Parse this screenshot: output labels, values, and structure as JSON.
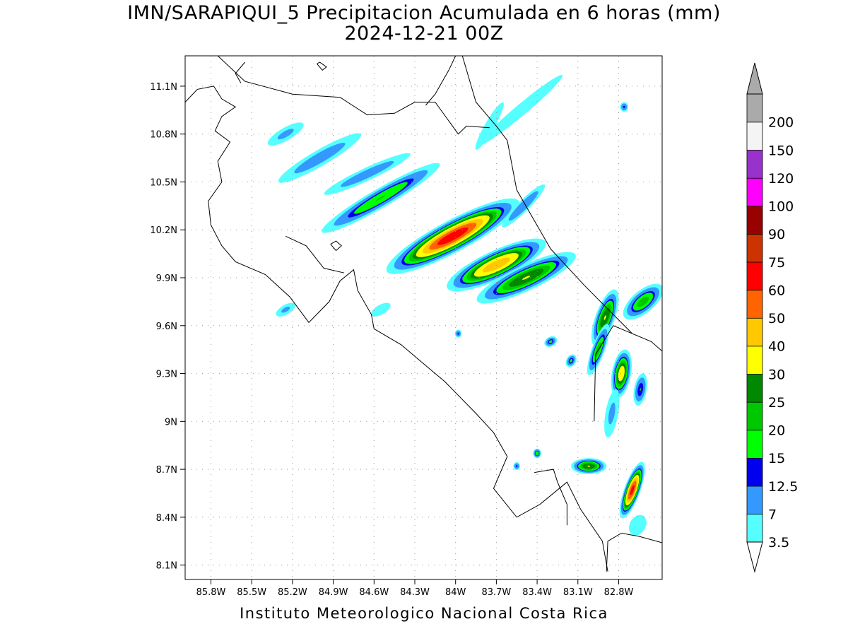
{
  "title": {
    "line1": "IMN/SARAPIQUI_5 Precipitacion Acumulada en 6 horas (mm)",
    "line2": "2024-12-21 00Z"
  },
  "footer": "Instituto Meteorologico Nacional Costa Rica",
  "axes": {
    "lon_ticks": [
      "85.8W",
      "85.5W",
      "85.2W",
      "84.9W",
      "84.6W",
      "84.3W",
      "84W",
      "83.7W",
      "83.4W",
      "83.1W",
      "82.8W"
    ],
    "lon_values": [
      -85.8,
      -85.5,
      -85.2,
      -84.9,
      -84.6,
      -84.3,
      -84.0,
      -83.7,
      -83.4,
      -83.1,
      -82.8
    ],
    "lat_ticks": [
      "11.1N",
      "10.8N",
      "10.5N",
      "10.2N",
      "9.9N",
      "9.6N",
      "9.3N",
      "9N",
      "8.7N",
      "8.4N",
      "8.1N"
    ],
    "lat_values": [
      11.1,
      10.8,
      10.5,
      10.2,
      9.9,
      9.6,
      9.3,
      9.0,
      8.7,
      8.4,
      8.1
    ],
    "lon_range": [
      -85.99,
      -82.48
    ],
    "lat_range": [
      8.01,
      11.29
    ],
    "grid": "dotted"
  },
  "colorbar": {
    "labels": [
      "3.5",
      "7",
      "12.5",
      "15",
      "20",
      "25",
      "30",
      "40",
      "50",
      "60",
      "75",
      "90",
      "100",
      "120",
      "150",
      "200"
    ],
    "colors": [
      "#55ffff",
      "#3399ff",
      "#0000ee",
      "#00ff00",
      "#00c800",
      "#008800",
      "#ffff00",
      "#ffc800",
      "#ff6400",
      "#ff0000",
      "#cc3300",
      "#990000",
      "#ff00ff",
      "#9932cc",
      "#f4f4f4",
      "#aaaaaa"
    ],
    "orientation": "vertical-right"
  },
  "precip_levels": [
    {
      "min": 3.5,
      "color": "#55ffff"
    },
    {
      "min": 7,
      "color": "#3399ff"
    },
    {
      "min": 12.5,
      "color": "#0000ee"
    },
    {
      "min": 15,
      "color": "#00ff00"
    },
    {
      "min": 20,
      "color": "#00c800"
    },
    {
      "min": 25,
      "color": "#008800"
    },
    {
      "min": 30,
      "color": "#ffff00"
    },
    {
      "min": 40,
      "color": "#ffc800"
    },
    {
      "min": 50,
      "color": "#ff6400"
    },
    {
      "min": 60,
      "color": "#ff0000"
    },
    {
      "min": 75,
      "color": "#cc3300"
    }
  ],
  "cells": [
    {
      "lon": -84.02,
      "lat": 10.16,
      "along": 0.55,
      "across": 0.1,
      "angle": -28,
      "peak": 65
    },
    {
      "lon": -83.7,
      "lat": 9.98,
      "along": 0.4,
      "across": 0.09,
      "angle": -25,
      "peak": 45
    },
    {
      "lon": -83.48,
      "lat": 9.9,
      "along": 0.4,
      "across": 0.08,
      "angle": -25,
      "peak": 30
    },
    {
      "lon": -84.55,
      "lat": 10.4,
      "along": 0.5,
      "across": 0.06,
      "angle": -30,
      "peak": 20
    },
    {
      "lon": -85.0,
      "lat": 10.65,
      "along": 0.35,
      "across": 0.05,
      "angle": -30,
      "peak": 10
    },
    {
      "lon": -85.25,
      "lat": 10.8,
      "along": 0.15,
      "across": 0.04,
      "angle": -30,
      "peak": 8
    },
    {
      "lon": -83.5,
      "lat": 10.35,
      "along": 0.22,
      "across": 0.035,
      "angle": -45,
      "peak": 12
    },
    {
      "lon": -84.65,
      "lat": 10.55,
      "along": 0.35,
      "across": 0.04,
      "angle": -25,
      "peak": 10
    },
    {
      "lon": -82.9,
      "lat": 9.65,
      "along": 0.22,
      "across": 0.06,
      "angle": -70,
      "peak": 30
    },
    {
      "lon": -82.62,
      "lat": 9.75,
      "along": 0.18,
      "across": 0.07,
      "angle": -40,
      "peak": 22
    },
    {
      "lon": -82.78,
      "lat": 9.3,
      "along": 0.18,
      "across": 0.06,
      "angle": -80,
      "peak": 35
    },
    {
      "lon": -82.95,
      "lat": 9.45,
      "along": 0.2,
      "across": 0.04,
      "angle": -70,
      "peak": 22
    },
    {
      "lon": -82.7,
      "lat": 8.57,
      "along": 0.22,
      "across": 0.05,
      "angle": -70,
      "peak": 62
    },
    {
      "lon": -83.02,
      "lat": 8.72,
      "along": 0.13,
      "across": 0.05,
      "angle": 0,
      "peak": 30
    },
    {
      "lon": -82.64,
      "lat": 9.2,
      "along": 0.12,
      "across": 0.04,
      "angle": -80,
      "peak": 15
    },
    {
      "lon": -82.85,
      "lat": 9.05,
      "along": 0.18,
      "across": 0.04,
      "angle": -80,
      "peak": 8
    },
    {
      "lon": -83.4,
      "lat": 8.8,
      "along": 0.03,
      "across": 0.03,
      "angle": 0,
      "peak": 20
    },
    {
      "lon": -83.55,
      "lat": 8.72,
      "along": 0.025,
      "across": 0.025,
      "angle": 0,
      "peak": 13
    },
    {
      "lon": -83.52,
      "lat": 10.95,
      "along": 0.4,
      "across": 0.035,
      "angle": -40,
      "peak": 5
    },
    {
      "lon": -83.75,
      "lat": 10.85,
      "along": 0.2,
      "across": 0.03,
      "angle": -60,
      "peak": 4
    },
    {
      "lon": -82.76,
      "lat": 10.97,
      "along": 0.03,
      "across": 0.03,
      "angle": 0,
      "peak": 13
    },
    {
      "lon": -85.25,
      "lat": 9.7,
      "along": 0.08,
      "across": 0.03,
      "angle": -30,
      "peak": 8
    },
    {
      "lon": -84.55,
      "lat": 9.7,
      "along": 0.08,
      "across": 0.03,
      "angle": -30,
      "peak": 6
    },
    {
      "lon": -83.98,
      "lat": 9.55,
      "along": 0.025,
      "across": 0.025,
      "angle": 0,
      "peak": 13
    },
    {
      "lon": -83.3,
      "lat": 9.5,
      "along": 0.05,
      "across": 0.03,
      "angle": -30,
      "peak": 16
    },
    {
      "lon": -83.15,
      "lat": 9.38,
      "along": 0.05,
      "across": 0.03,
      "angle": -60,
      "peak": 16
    },
    {
      "lon": -82.66,
      "lat": 8.35,
      "along": 0.08,
      "across": 0.05,
      "angle": -60,
      "peak": 6
    }
  ],
  "coastlines": [
    [
      [
        -85.99,
        11.0
      ],
      [
        -85.9,
        11.08
      ],
      [
        -85.78,
        11.1
      ],
      [
        -85.72,
        11.02
      ],
      [
        -85.62,
        10.97
      ],
      [
        -85.72,
        10.91
      ],
      [
        -85.77,
        10.82
      ],
      [
        -85.66,
        10.75
      ],
      [
        -85.75,
        10.63
      ],
      [
        -85.72,
        10.5
      ],
      [
        -85.82,
        10.38
      ],
      [
        -85.8,
        10.23
      ],
      [
        -85.72,
        10.1
      ],
      [
        -85.62,
        10.0
      ],
      [
        -85.4,
        9.92
      ],
      [
        -85.22,
        9.78
      ],
      [
        -85.08,
        9.62
      ],
      [
        -84.93,
        9.75
      ],
      [
        -84.85,
        9.88
      ],
      [
        -84.75,
        9.95
      ],
      [
        -84.72,
        9.82
      ],
      [
        -84.62,
        9.67
      ],
      [
        -84.6,
        9.58
      ],
      [
        -84.4,
        9.48
      ],
      [
        -84.22,
        9.35
      ],
      [
        -84.08,
        9.25
      ],
      [
        -83.85,
        9.05
      ],
      [
        -83.72,
        8.93
      ],
      [
        -83.62,
        8.78
      ],
      [
        -83.72,
        8.58
      ],
      [
        -83.55,
        8.4
      ],
      [
        -83.38,
        8.48
      ],
      [
        -83.18,
        8.62
      ],
      [
        -83.08,
        8.45
      ],
      [
        -82.92,
        8.25
      ],
      [
        -82.88,
        8.06
      ]
    ],
    [
      [
        -85.25,
        10.16
      ],
      [
        -85.1,
        10.1
      ],
      [
        -84.97,
        9.96
      ],
      [
        -84.82,
        9.93
      ]
    ],
    [
      [
        -83.95,
        11.29
      ],
      [
        -83.85,
        11.0
      ],
      [
        -83.7,
        10.85
      ],
      [
        -83.62,
        10.76
      ],
      [
        -83.55,
        10.45
      ],
      [
        -83.3,
        10.08
      ],
      [
        -83.05,
        9.85
      ],
      [
        -82.7,
        9.55
      ],
      [
        -82.56,
        9.5
      ],
      [
        -82.48,
        9.44
      ]
    ],
    [
      [
        -83.42,
        8.68
      ],
      [
        -83.28,
        8.7
      ],
      [
        -83.25,
        8.62
      ],
      [
        -83.18,
        8.48
      ],
      [
        -83.18,
        8.35
      ]
    ],
    [
      [
        -82.89,
        8.06
      ],
      [
        -82.88,
        8.25
      ],
      [
        -82.78,
        8.3
      ],
      [
        -82.65,
        8.28
      ],
      [
        -82.48,
        8.24
      ]
    ],
    [
      [
        -85.75,
        11.29
      ],
      [
        -85.55,
        11.13
      ],
      [
        -85.2,
        11.05
      ],
      [
        -84.85,
        11.03
      ],
      [
        -84.65,
        10.92
      ],
      [
        -84.45,
        10.93
      ],
      [
        -84.3,
        11.0
      ],
      [
        -84.15,
        11.0
      ],
      [
        -83.98,
        10.8
      ],
      [
        -83.92,
        10.85
      ],
      [
        -83.75,
        10.84
      ]
    ],
    [
      [
        -82.98,
        9.0
      ],
      [
        -82.97,
        9.42
      ],
      [
        -82.84,
        9.6
      ],
      [
        -82.7,
        9.55
      ]
    ],
    [
      [
        -84.0,
        11.29
      ],
      [
        -84.05,
        11.2
      ],
      [
        -84.15,
        11.05
      ],
      [
        -84.22,
        10.98
      ]
    ],
    [
      [
        -85.55,
        11.25
      ],
      [
        -85.62,
        11.18
      ],
      [
        -85.58,
        11.12
      ]
    ],
    [
      [
        -85.02,
        11.24
      ],
      [
        -84.98,
        11.2
      ],
      [
        -84.95,
        11.22
      ],
      [
        -85.0,
        11.25
      ],
      [
        -85.02,
        11.24
      ]
    ],
    [
      [
        -84.92,
        10.11
      ],
      [
        -84.88,
        10.07
      ],
      [
        -84.84,
        10.1
      ],
      [
        -84.88,
        10.13
      ],
      [
        -84.92,
        10.11
      ]
    ]
  ]
}
